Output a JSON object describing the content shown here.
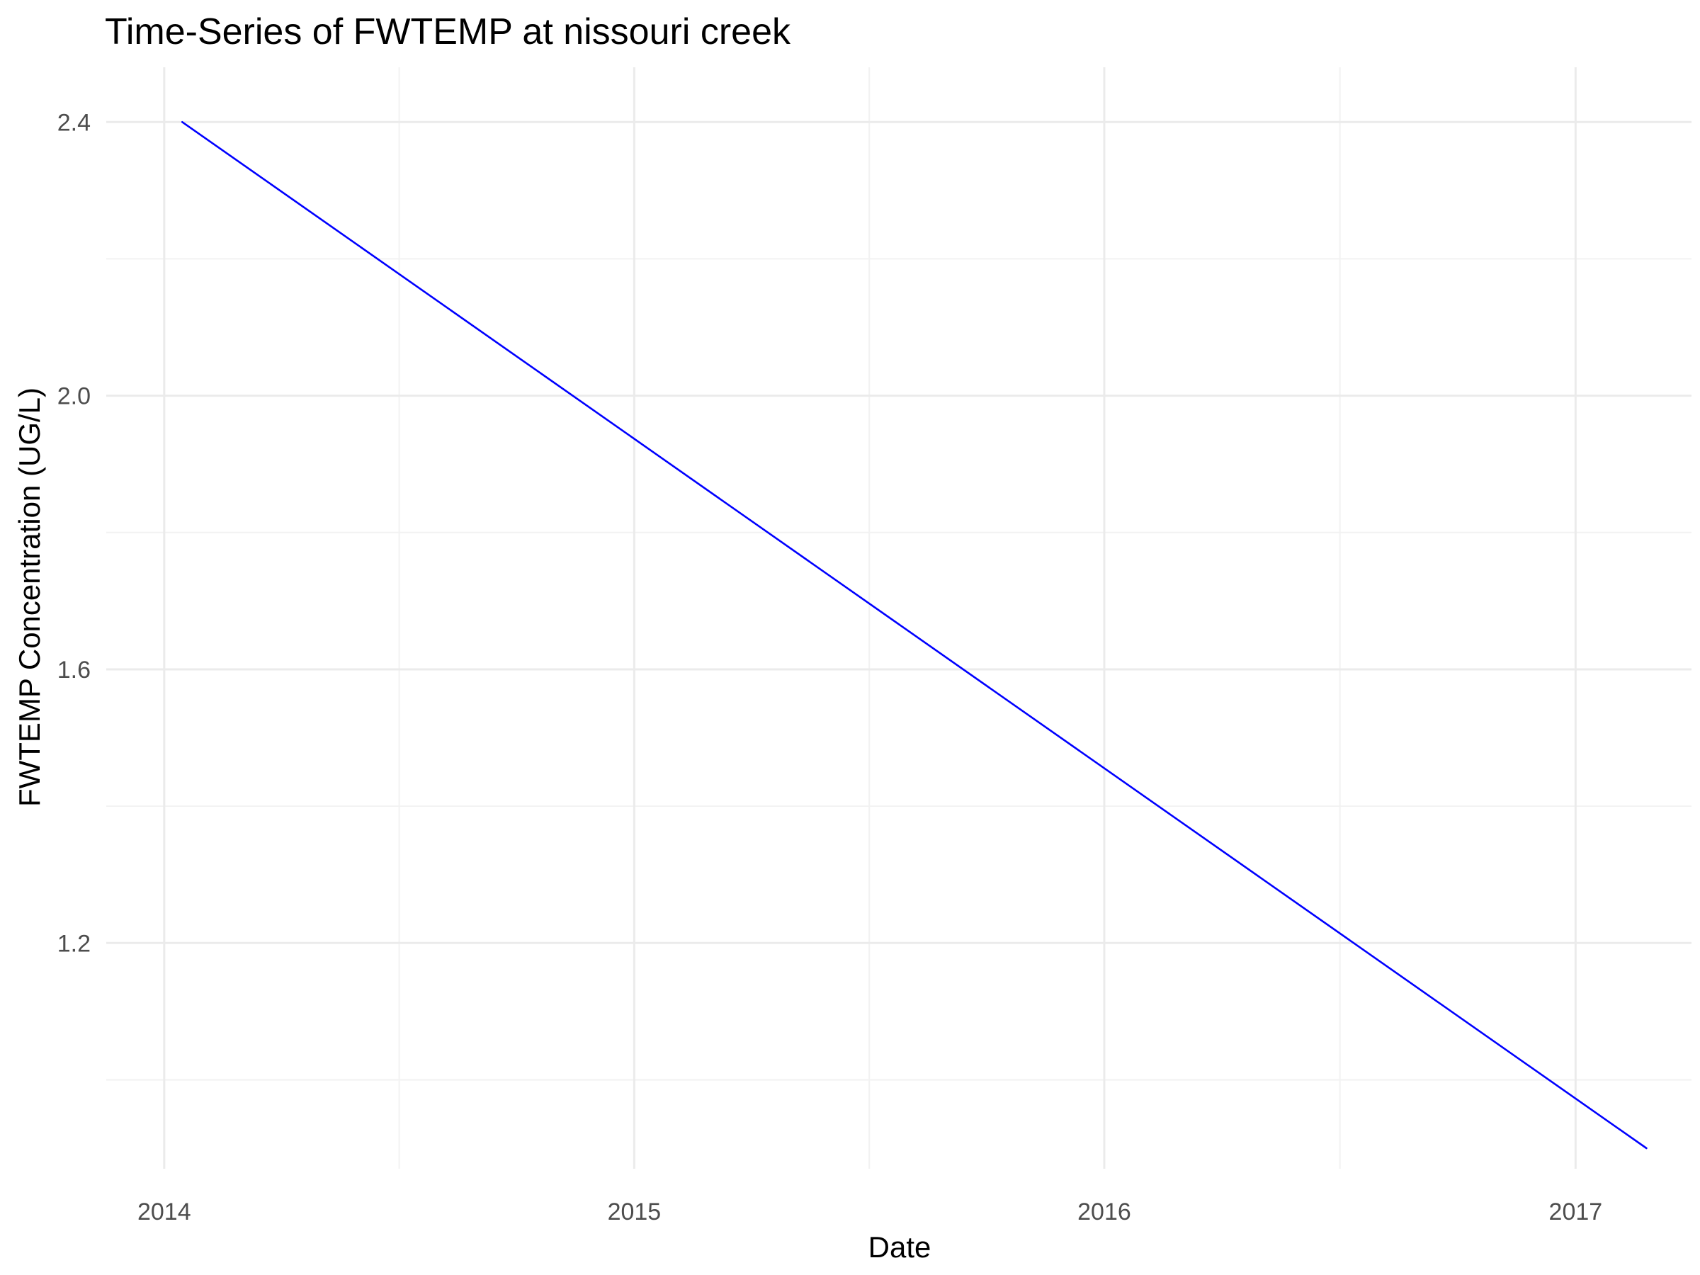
{
  "chart_data": {
    "type": "line",
    "title": "Time-Series of FWTEMP at nissouri creek",
    "xlabel": "Date",
    "ylabel": "FWTEMP Concentration (UG/L)",
    "x_ticks": [
      "2014",
      "2015",
      "2016",
      "2017"
    ],
    "y_ticks": [
      "1.2",
      "1.6",
      "2.0",
      "2.4"
    ],
    "xlim": [
      "2013-11-17",
      "2017-04-01"
    ],
    "ylim": [
      0.87,
      2.48
    ],
    "grid": true,
    "legend": "none",
    "series": [
      {
        "color": "#0000ff",
        "points": [
          {
            "x": "2014-01-15",
            "y": 2.4
          },
          {
            "x": "2017-02-25",
            "y": 0.9
          }
        ]
      }
    ]
  }
}
